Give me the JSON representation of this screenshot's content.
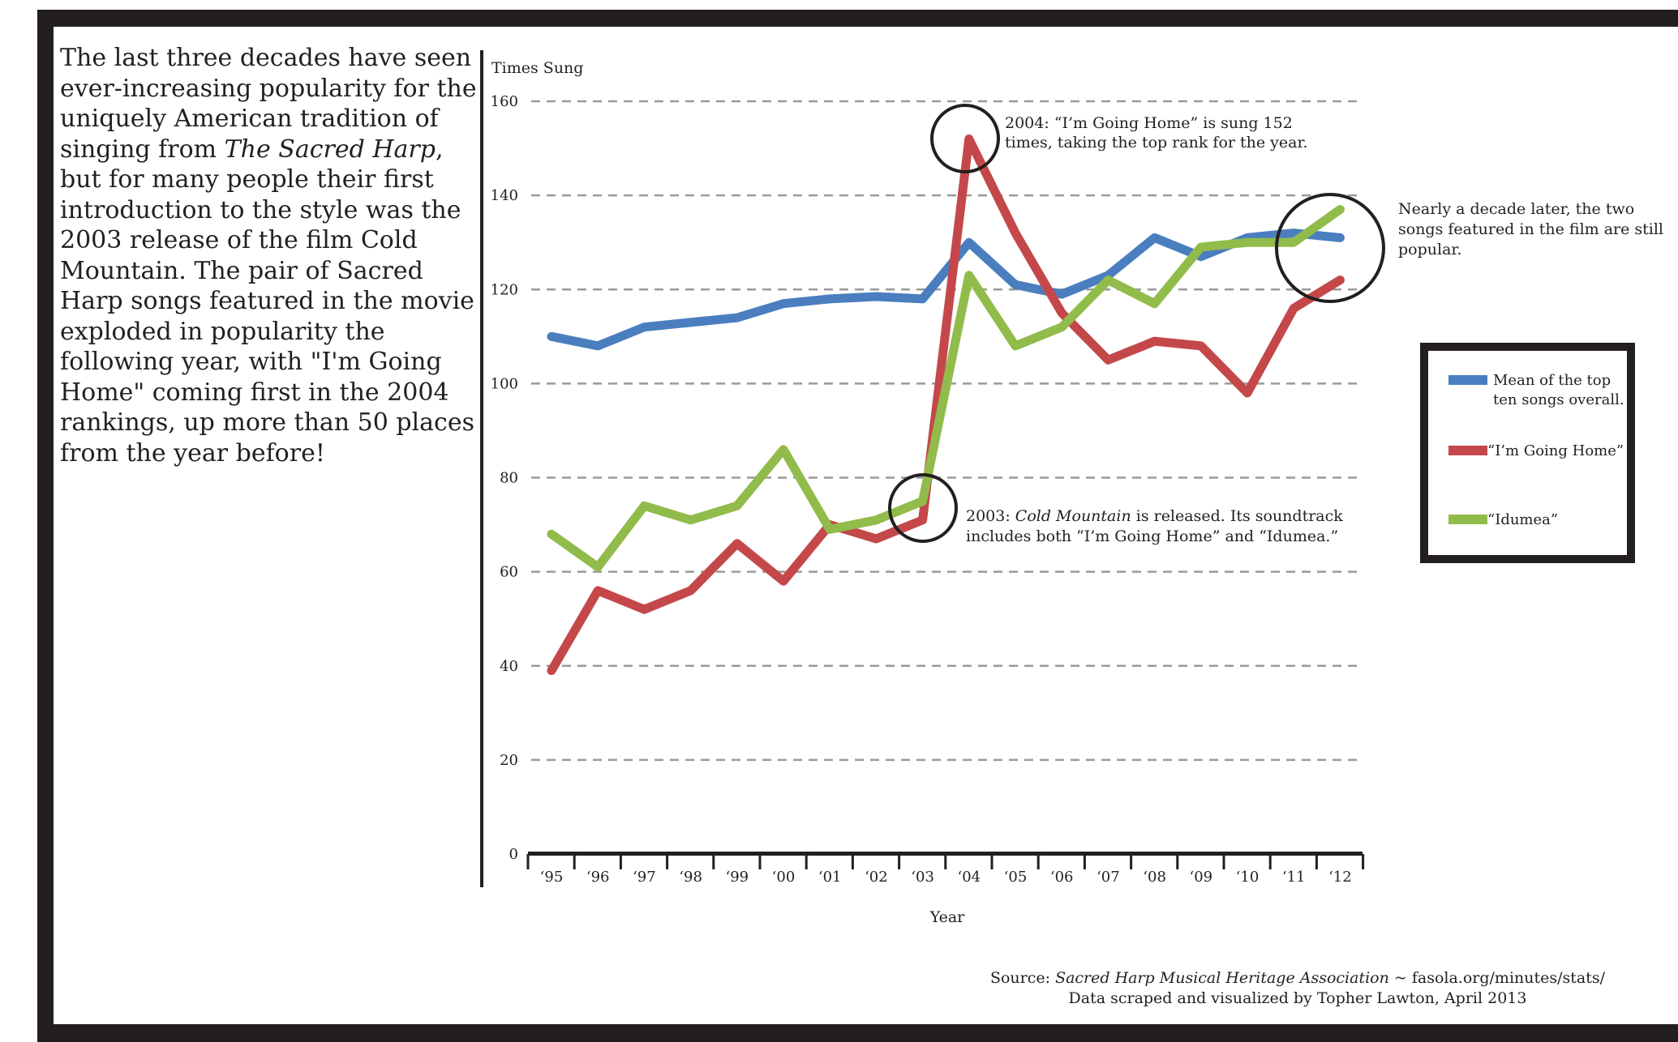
{
  "intro": {
    "part1": "The last three decades have seen ever-increasing popularity for the uniquely American tradition of singing from ",
    "italic": "The Sacred Harp",
    "part2": ", but for many people their first introduction to the style was the 2003 release of the film Cold Mountain. The pair of Sacred Harp songs featured in the movie exploded in popularity the following year, with \"I'm Going Home\" coming first in the 2004 rankings, up more than 50 places from the year before!"
  },
  "annotations": {
    "a2004_line1": "2004: “I’m Going Home” is sung 152",
    "a2004_line2": "times, taking the top rank for the year.",
    "a2003_pre": "2003: ",
    "a2003_italic": "Cold Mountain",
    "a2003_post": " is released. Its soundtrack",
    "a2003_line2": "includes both “I’m Going Home” and “Idumea.”",
    "decade_line1": "Nearly a decade later, the two",
    "decade_line2": "songs featured in the film are still",
    "decade_line3": "popular."
  },
  "legend": {
    "mean_line1": "Mean of the top",
    "mean_line2": "ten songs overall.",
    "going_home": "“I’m Going Home”",
    "idumea": "“Idumea”"
  },
  "source": {
    "prefix": "Source: ",
    "italic": "Sacred Harp Musical Heritage Association",
    "suffix": " ~ fasola.org/minutes/stats/",
    "line2": "Data scraped and visualized by Topher Lawton, April 2013"
  },
  "colors": {
    "mean": "#4a7ebf",
    "going_home": "#c4484a",
    "idumea": "#91bc4b",
    "frame": "#231f20",
    "grid": "#9a9a9a"
  },
  "chart_data": {
    "type": "line",
    "ylabel": "Times Sung",
    "xlabel": "Year",
    "ylim": [
      0,
      160
    ],
    "y_ticks": [
      0,
      20,
      40,
      60,
      80,
      100,
      120,
      140,
      160
    ],
    "grid": "horizontal dashed",
    "legend_position": "right",
    "x": [
      "‘95",
      "‘96",
      "‘97",
      "‘98",
      "‘99",
      "‘00",
      "‘01",
      "‘02",
      "‘03",
      "‘04",
      "‘05",
      "‘06",
      "‘07",
      "‘08",
      "‘09",
      "‘10",
      "‘11",
      "‘12"
    ],
    "series": [
      {
        "name": "Mean of the top ten songs overall.",
        "color_key": "mean",
        "values": [
          110,
          108,
          112,
          113,
          114,
          117,
          118,
          118.5,
          118,
          130,
          121,
          119,
          123,
          131,
          127,
          131,
          132,
          131
        ]
      },
      {
        "name": "“I’m Going Home”",
        "color_key": "going_home",
        "values": [
          39,
          56,
          52,
          56,
          66,
          58,
          70,
          67,
          71,
          152,
          132,
          115,
          105,
          109,
          108,
          98,
          116,
          122
        ]
      },
      {
        "name": "“Idumea”",
        "color_key": "idumea",
        "values": [
          68,
          61,
          74,
          71,
          74,
          86,
          69,
          71,
          75,
          123,
          108,
          112,
          122,
          117,
          129,
          130,
          130,
          137
        ]
      }
    ]
  }
}
